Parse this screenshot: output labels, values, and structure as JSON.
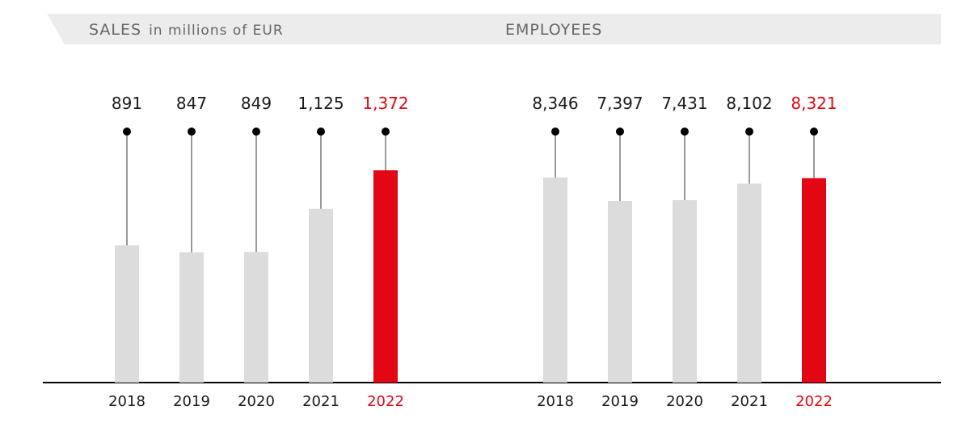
{
  "colors": {
    "bar_default": "#dcdcdc",
    "bar_highlight": "#e30613",
    "text_default": "#1a1a1a",
    "text_highlight": "#e30613",
    "header_band": "#ececec",
    "header_text": "#666666",
    "axis": "#000000"
  },
  "chart_data": [
    {
      "type": "bar",
      "title": "SALES",
      "subtitle": "in millions of EUR",
      "categories": [
        "2018",
        "2019",
        "2020",
        "2021",
        "2022"
      ],
      "values": [
        891,
        847,
        849,
        1125,
        1372
      ],
      "value_labels": [
        "891",
        "847",
        "849",
        "1,125",
        "1,372"
      ],
      "highlight_index": 4
    },
    {
      "type": "bar",
      "title": "EMPLOYEES",
      "subtitle": "",
      "categories": [
        "2018",
        "2019",
        "2020",
        "2021",
        "2022"
      ],
      "values": [
        8346,
        7397,
        7431,
        8102,
        8321
      ],
      "value_labels": [
        "8,346",
        "7,397",
        "7,431",
        "8,102",
        "8,321"
      ],
      "highlight_index": 4
    }
  ]
}
